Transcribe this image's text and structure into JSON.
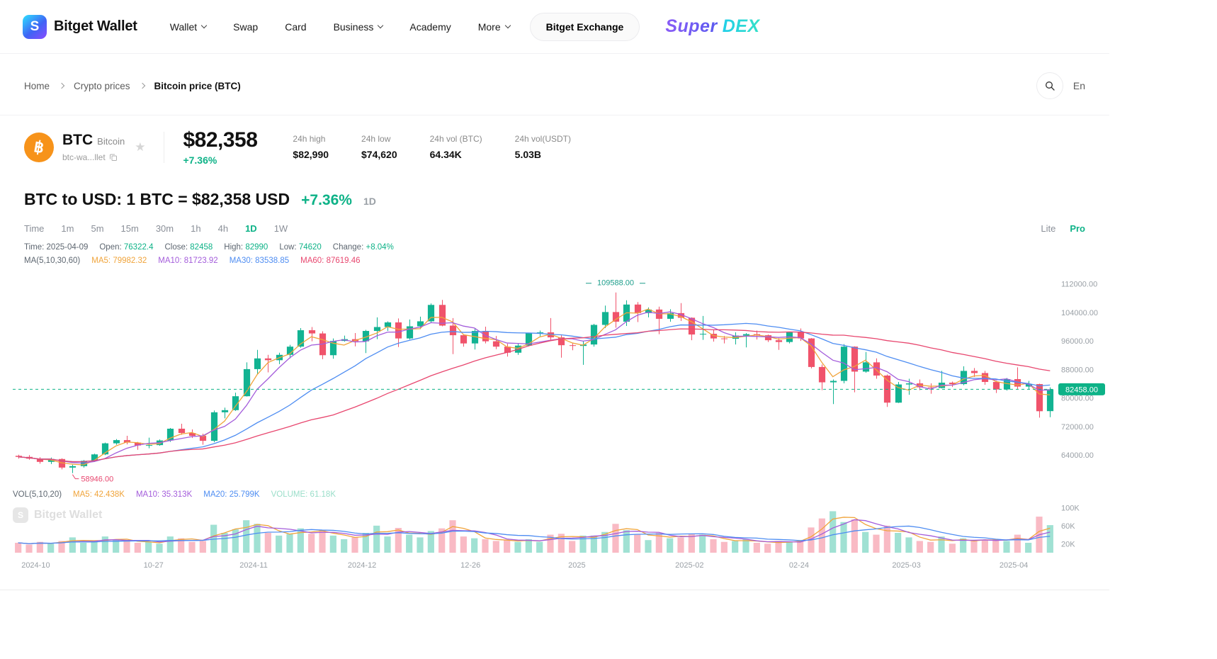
{
  "header": {
    "brand": "Bitget Wallet",
    "nav": [
      {
        "label": "Wallet"
      },
      {
        "label": "Swap"
      },
      {
        "label": "Card"
      },
      {
        "label": "Business"
      },
      {
        "label": "Academy"
      },
      {
        "label": "More"
      }
    ],
    "exchange_button": "Bitget Exchange",
    "dex_logo": {
      "part1": "Super",
      "part2": "DEX"
    }
  },
  "breadcrumb": {
    "items": [
      "Home",
      "Crypto prices",
      "Bitcoin price (BTC)"
    ],
    "language": "En"
  },
  "coin": {
    "symbol": "BTC",
    "name": "Bitcoin",
    "address": "btc-wa...llet",
    "icon_glyph": "฿",
    "price": "$82,358",
    "change": "+7.36%",
    "stats": [
      {
        "label": "24h high",
        "value": "$82,990"
      },
      {
        "label": "24h low",
        "value": "$74,620"
      },
      {
        "label": "24h vol (BTC)",
        "value": "64.34K"
      },
      {
        "label": "24h vol(USDT)",
        "value": "5.03B"
      }
    ]
  },
  "title": {
    "main": "BTC to USD: 1 BTC = $82,358 USD",
    "change": "+7.36%",
    "interval": "1D"
  },
  "chart_toolbar": {
    "time_label": "Time",
    "intervals": [
      "1m",
      "5m",
      "15m",
      "30m",
      "1h",
      "4h",
      "1D",
      "1W"
    ],
    "active": "1D",
    "modes": {
      "lite": "Lite",
      "pro": "Pro"
    },
    "active_mode": "Pro"
  },
  "ohlc_info": {
    "time_label": "Time:",
    "time_value": "2025-04-09",
    "open_label": "Open:",
    "open_value": "76322.4",
    "close_label": "Close:",
    "close_value": "82458",
    "high_label": "High:",
    "high_value": "82990",
    "low_label": "Low:",
    "low_value": "74620",
    "change_label": "Change:",
    "change_value": "+8.04%"
  },
  "ma_info": {
    "group": "MA(5,10,30,60)",
    "ma5_label": "MA5:",
    "ma5_value": "79982.32",
    "ma10_label": "MA10:",
    "ma10_value": "81723.92",
    "ma30_label": "MA30:",
    "ma30_value": "83538.85",
    "ma60_label": "MA60:",
    "ma60_value": "87619.46"
  },
  "vol_info": {
    "group": "VOL(5,10,20)",
    "ma5_label": "MA5:",
    "ma5_value": "42.438K",
    "ma10_label": "MA10:",
    "ma10_value": "35.313K",
    "ma20_label": "MA20:",
    "ma20_value": "25.799K",
    "volume_label": "VOLUME:",
    "volume_value": "61.18K"
  },
  "watermark": "Bitget Wallet",
  "chart_data": {
    "type": "candlestick",
    "title": "BTC/USD daily candles with MA(5,10,30,60) and volume",
    "interval": "1D",
    "legend_position": "top-left",
    "grid": false,
    "x_axis": [
      {
        "label": "2024-10",
        "pos": 0.022
      },
      {
        "label": "10-27",
        "pos": 0.135
      },
      {
        "label": "2024-11",
        "pos": 0.231
      },
      {
        "label": "2024-12",
        "pos": 0.335
      },
      {
        "label": "12-26",
        "pos": 0.439
      },
      {
        "label": "2025",
        "pos": 0.541
      },
      {
        "label": "2025-02",
        "pos": 0.649
      },
      {
        "label": "02-24",
        "pos": 0.754
      },
      {
        "label": "2025-03",
        "pos": 0.857
      },
      {
        "label": "2025-04",
        "pos": 0.96
      }
    ],
    "price_axis": {
      "min": 56500,
      "max": 114500,
      "ticks": [
        {
          "value": 112000,
          "label": "112000.00"
        },
        {
          "value": 104000,
          "label": "104000.00"
        },
        {
          "value": 96000,
          "label": "96000.00"
        },
        {
          "value": 88000,
          "label": "88000.00"
        },
        {
          "value": 80000,
          "label": "80000.00"
        },
        {
          "value": 72000,
          "label": "72000.00"
        },
        {
          "value": 64000,
          "label": "64000.00"
        }
      ]
    },
    "volume_axis": {
      "max": 110,
      "ticks": [
        {
          "value": 100,
          "label": "100K"
        },
        {
          "value": 60,
          "label": "60K"
        },
        {
          "value": 20,
          "label": "20K"
        }
      ]
    },
    "current_price": {
      "value": 82458,
      "label": "82458.00"
    },
    "annotations": {
      "high": {
        "value": 109588,
        "label": "109588.00"
      },
      "low": {
        "value": 58946,
        "label": "58946.00"
      }
    },
    "ma_windows": [
      3,
      5,
      15,
      30
    ],
    "vol_ma_windows": [
      3,
      5,
      10
    ],
    "colors": {
      "up": "#12b392",
      "down": "#f0536b",
      "ma5": "#f0a43b",
      "ma10": "#a45ddb",
      "ma30": "#4e8df2",
      "ma60": "#e8476f",
      "axis_text": "#9aa0a6",
      "current": "#0db287",
      "high_label": "#1d9e8b",
      "low_label": "#e8476f"
    },
    "candle_format": [
      "date",
      "open",
      "high",
      "low",
      "close",
      "volume_K"
    ],
    "candles": [
      [
        "2024-10-01",
        63800,
        64100,
        63000,
        63500,
        22
      ],
      [
        "2024-10-03",
        63500,
        64000,
        62700,
        63000,
        18
      ],
      [
        "2024-10-05",
        63000,
        63400,
        61600,
        62100,
        24
      ],
      [
        "2024-10-07",
        62100,
        63300,
        61500,
        62900,
        20
      ],
      [
        "2024-10-09",
        62900,
        63100,
        60000,
        60500,
        26
      ],
      [
        "2024-10-11",
        60500,
        61300,
        58946,
        60900,
        34
      ],
      [
        "2024-10-13",
        60900,
        62600,
        60500,
        62400,
        22
      ],
      [
        "2024-10-15",
        62400,
        64400,
        62100,
        64200,
        24
      ],
      [
        "2024-10-17",
        64200,
        67500,
        64000,
        67300,
        36
      ],
      [
        "2024-10-19",
        67300,
        68500,
        66900,
        68200,
        28
      ],
      [
        "2024-10-21",
        68200,
        69400,
        67000,
        67500,
        26
      ],
      [
        "2024-10-23",
        67500,
        67700,
        65500,
        66700,
        22
      ],
      [
        "2024-10-25",
        66700,
        68900,
        65900,
        66800,
        24
      ],
      [
        "2024-10-27",
        66800,
        68400,
        66600,
        68100,
        20
      ],
      [
        "2024-10-29",
        68100,
        71600,
        67700,
        71400,
        36
      ],
      [
        "2024-10-31",
        71400,
        72800,
        69700,
        70200,
        32
      ],
      [
        "2024-11-02",
        70200,
        71200,
        68800,
        69400,
        24
      ],
      [
        "2024-11-04",
        69400,
        70000,
        66900,
        68000,
        26
      ],
      [
        "2024-11-06",
        68000,
        76500,
        67600,
        76000,
        62
      ],
      [
        "2024-11-08",
        76000,
        77300,
        74300,
        76600,
        44
      ],
      [
        "2024-11-10",
        76600,
        81500,
        76400,
        80500,
        52
      ],
      [
        "2024-11-12",
        80500,
        90000,
        80400,
        88100,
        72
      ],
      [
        "2024-11-14",
        88100,
        93500,
        86800,
        91100,
        64
      ],
      [
        "2024-11-16",
        91100,
        92100,
        87200,
        90600,
        44
      ],
      [
        "2024-11-18",
        90600,
        92700,
        89500,
        92100,
        38
      ],
      [
        "2024-11-20",
        92100,
        94900,
        91100,
        94400,
        42
      ],
      [
        "2024-11-22",
        94400,
        99600,
        94100,
        99000,
        54
      ],
      [
        "2024-11-24",
        99000,
        99900,
        95900,
        98100,
        42
      ],
      [
        "2024-11-26",
        98100,
        98700,
        90900,
        92000,
        50
      ],
      [
        "2024-11-28",
        92000,
        96700,
        91000,
        96000,
        38
      ],
      [
        "2024-11-30",
        96000,
        97500,
        95800,
        96500,
        30
      ],
      [
        "2024-12-02",
        96500,
        98200,
        94500,
        95900,
        34
      ],
      [
        "2024-12-04",
        95900,
        99100,
        92600,
        98800,
        44
      ],
      [
        "2024-12-06",
        98800,
        102600,
        96500,
        99900,
        60
      ],
      [
        "2024-12-08",
        99900,
        101500,
        98800,
        101200,
        36
      ],
      [
        "2024-12-10",
        101200,
        102300,
        94300,
        96700,
        55
      ],
      [
        "2024-12-12",
        96700,
        102000,
        96400,
        100100,
        40
      ],
      [
        "2024-12-14",
        100100,
        102800,
        99300,
        101500,
        34
      ],
      [
        "2024-12-16",
        101500,
        106500,
        101200,
        106100,
        48
      ],
      [
        "2024-12-18",
        106100,
        107500,
        100100,
        100300,
        54
      ],
      [
        "2024-12-20",
        100300,
        102400,
        92300,
        97600,
        72
      ],
      [
        "2024-12-22",
        97600,
        97900,
        94400,
        95300,
        36
      ],
      [
        "2024-12-24",
        95300,
        99600,
        93600,
        98800,
        32
      ],
      [
        "2024-12-26",
        98800,
        100000,
        95300,
        95900,
        30
      ],
      [
        "2024-12-28",
        95900,
        97400,
        93700,
        94400,
        26
      ],
      [
        "2024-12-30",
        94400,
        95200,
        91600,
        92700,
        28
      ],
      [
        "2025-01-01",
        92700,
        95300,
        92100,
        94700,
        24
      ],
      [
        "2025-01-03",
        94700,
        98300,
        94500,
        98200,
        30
      ],
      [
        "2025-01-05",
        98200,
        98900,
        97300,
        98400,
        24
      ],
      [
        "2025-01-07",
        98400,
        102400,
        96200,
        97000,
        40
      ],
      [
        "2025-01-09",
        97000,
        97600,
        91300,
        94800,
        42
      ],
      [
        "2025-01-11",
        94800,
        95500,
        93400,
        94600,
        26
      ],
      [
        "2025-01-13",
        94600,
        96000,
        89300,
        95000,
        38
      ],
      [
        "2025-01-15",
        95000,
        100800,
        94400,
        100500,
        38
      ],
      [
        "2025-01-17",
        100500,
        105900,
        99600,
        104100,
        46
      ],
      [
        "2025-01-19",
        104100,
        109588,
        99700,
        101400,
        64
      ],
      [
        "2025-01-21",
        101400,
        107400,
        100200,
        106200,
        50
      ],
      [
        "2025-01-23",
        106200,
        106900,
        101300,
        103800,
        40
      ],
      [
        "2025-01-25",
        103800,
        105400,
        102600,
        104800,
        28
      ],
      [
        "2025-01-27",
        104800,
        105600,
        97900,
        102200,
        44
      ],
      [
        "2025-01-29",
        102200,
        104900,
        101400,
        103800,
        32
      ],
      [
        "2025-01-31",
        103800,
        106600,
        101600,
        102500,
        34
      ],
      [
        "2025-02-02",
        102500,
        102600,
        96200,
        97800,
        42
      ],
      [
        "2025-02-04",
        97800,
        103000,
        96300,
        98000,
        40
      ],
      [
        "2025-02-06",
        98000,
        99200,
        95800,
        96700,
        30
      ],
      [
        "2025-02-08",
        96700,
        97400,
        95300,
        96600,
        24
      ],
      [
        "2025-02-10",
        96600,
        98400,
        95000,
        97500,
        26
      ],
      [
        "2025-02-12",
        97500,
        98200,
        94200,
        97900,
        30
      ],
      [
        "2025-02-14",
        97900,
        98900,
        96400,
        97600,
        22
      ],
      [
        "2025-02-16",
        97600,
        97800,
        95700,
        96200,
        20
      ],
      [
        "2025-02-18",
        96200,
        96800,
        93500,
        95700,
        26
      ],
      [
        "2025-02-20",
        95700,
        98600,
        95300,
        98400,
        24
      ],
      [
        "2025-02-22",
        98400,
        99500,
        96000,
        96700,
        26
      ],
      [
        "2025-02-24",
        96700,
        96800,
        88300,
        88700,
        56
      ],
      [
        "2025-02-26",
        88700,
        89400,
        82200,
        84400,
        76
      ],
      [
        "2025-02-28",
        84400,
        85200,
        78300,
        84800,
        92
      ],
      [
        "2025-03-02",
        84800,
        95100,
        84100,
        94400,
        68
      ],
      [
        "2025-03-04",
        94400,
        94500,
        81600,
        87400,
        74
      ],
      [
        "2025-03-06",
        87400,
        92900,
        87100,
        90000,
        46
      ],
      [
        "2025-03-08",
        90000,
        91100,
        85400,
        86300,
        40
      ],
      [
        "2025-03-10",
        86300,
        86600,
        77500,
        78700,
        60
      ],
      [
        "2025-03-12",
        78700,
        84500,
        78600,
        83800,
        44
      ],
      [
        "2025-03-14",
        83800,
        85400,
        80900,
        84100,
        34
      ],
      [
        "2025-03-16",
        84100,
        85200,
        82200,
        83000,
        26
      ],
      [
        "2025-03-18",
        83000,
        84100,
        81200,
        82800,
        24
      ],
      [
        "2025-03-20",
        82800,
        87600,
        82700,
        84300,
        36
      ],
      [
        "2025-03-22",
        84300,
        84600,
        83100,
        83900,
        20
      ],
      [
        "2025-03-24",
        83900,
        88900,
        83600,
        87600,
        32
      ],
      [
        "2025-03-26",
        87600,
        88400,
        85900,
        87000,
        26
      ],
      [
        "2025-03-28",
        87000,
        87600,
        83700,
        84500,
        28
      ],
      [
        "2025-03-30",
        84500,
        84800,
        81400,
        82400,
        30
      ],
      [
        "2025-04-01",
        82400,
        85600,
        82100,
        85300,
        26
      ],
      [
        "2025-04-03",
        85300,
        88600,
        82400,
        83200,
        40
      ],
      [
        "2025-04-05",
        83200,
        84800,
        82500,
        83900,
        22
      ],
      [
        "2025-04-07",
        83900,
        84000,
        74500,
        76300,
        80
      ],
      [
        "2025-04-09",
        76322.4,
        82990,
        74620,
        82458,
        61.18
      ]
    ]
  }
}
